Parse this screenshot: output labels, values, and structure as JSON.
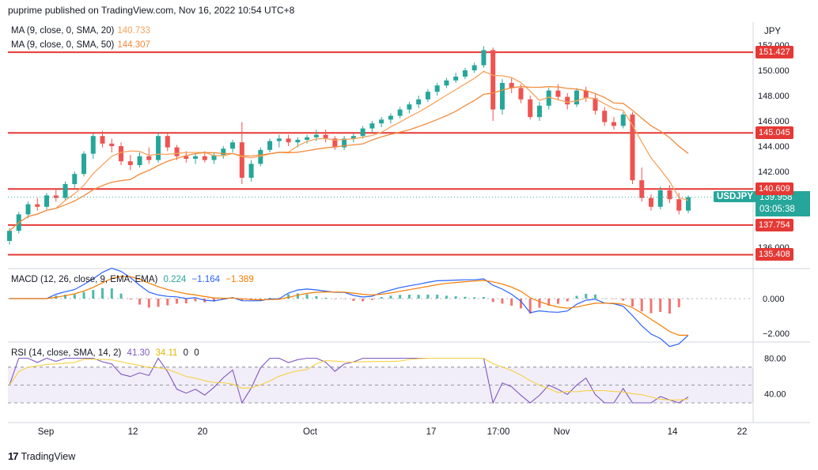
{
  "header": {
    "published": "puprime published on TradingView.com, Nov 16, 2022 10:54 UTC+8"
  },
  "footer": {
    "logo": "17",
    "brand": "TradingView"
  },
  "currency": "JPY",
  "symbol": {
    "name": "USDJPY",
    "price": "139.958",
    "countdown": "03:05:38",
    "color": "#26a69a"
  },
  "ma_legend": [
    {
      "label": "MA (9, close, 0, SMA, 20)",
      "value": "140.733",
      "color": "#f7a35c"
    },
    {
      "label": "MA (9, close, 0, SMA, 50)",
      "value": "144.307",
      "color": "#f28b3c"
    }
  ],
  "levels": [
    {
      "value": 151.427,
      "label": "151.427"
    },
    {
      "value": 145.045,
      "label": "145.045"
    },
    {
      "value": 140.609,
      "label": "140.609"
    },
    {
      "value": 137.754,
      "label": "137.754"
    },
    {
      "value": 135.408,
      "label": "135.408"
    }
  ],
  "level_color": "#e53935",
  "price_axis": {
    "ticks": [
      {
        "value": 152.0,
        "label": "152.000"
      },
      {
        "value": 150.0,
        "label": "150.000"
      },
      {
        "value": 148.0,
        "label": "148.000"
      },
      {
        "value": 146.0,
        "label": "146.000"
      },
      {
        "value": 144.0,
        "label": "144.000"
      },
      {
        "value": 142.0,
        "label": "142.000"
      },
      {
        "value": 136.0,
        "label": "136.000"
      }
    ]
  },
  "macd": {
    "label": "MACD (12, 26, close, 9, EMA, EMA)",
    "v1": "0.224",
    "v2": "−1.164",
    "v3": "−1.389",
    "c1": "#26a69a",
    "c2": "#2962ff",
    "c3": "#f57c00",
    "ticks": [
      {
        "value": 0,
        "label": "0.000"
      },
      {
        "value": -2,
        "label": "−2.000"
      }
    ]
  },
  "rsi": {
    "label": "RSI (14, close, SMA, 14, 2)",
    "v1": "41.30",
    "v2": "34.11",
    "v3": "0",
    "v4": "0",
    "c1": "#7e57c2",
    "c2": "#f5d142",
    "ticks": [
      {
        "value": 80,
        "label": "80.00"
      },
      {
        "value": 40,
        "label": "40.00"
      }
    ]
  },
  "time_axis": [
    "Sep",
    "12",
    "20",
    "Oct",
    "17",
    "17:00",
    "Nov",
    "14",
    "22"
  ],
  "chart_data": {
    "type": "candlestick",
    "candles": [
      [
        136.5,
        137.5,
        136.2,
        137.3
      ],
      [
        137.3,
        138.8,
        137.1,
        138.6
      ],
      [
        138.6,
        139.6,
        138.3,
        139.4
      ],
      [
        139.4,
        139.9,
        138.9,
        139.2
      ],
      [
        139.2,
        140.3,
        139.0,
        140.1
      ],
      [
        140.1,
        140.6,
        139.6,
        139.9
      ],
      [
        139.9,
        141.2,
        139.7,
        141.0
      ],
      [
        141.0,
        142.0,
        140.7,
        141.8
      ],
      [
        141.8,
        143.6,
        141.6,
        143.4
      ],
      [
        143.4,
        145.0,
        143.0,
        144.8
      ],
      [
        144.8,
        145.2,
        143.9,
        144.2
      ],
      [
        144.2,
        144.6,
        143.5,
        144.0
      ],
      [
        144.0,
        144.3,
        142.5,
        142.8
      ],
      [
        142.8,
        143.3,
        142.1,
        142.5
      ],
      [
        142.5,
        143.5,
        142.3,
        143.2
      ],
      [
        143.2,
        143.9,
        142.6,
        142.9
      ],
      [
        142.9,
        145.1,
        142.7,
        144.8
      ],
      [
        144.8,
        145.0,
        143.6,
        143.9
      ],
      [
        143.9,
        144.1,
        142.9,
        143.2
      ],
      [
        143.2,
        143.6,
        142.7,
        143.0
      ],
      [
        143.0,
        143.4,
        142.6,
        143.2
      ],
      [
        143.2,
        143.6,
        142.7,
        142.9
      ],
      [
        142.9,
        143.5,
        142.6,
        143.3
      ],
      [
        143.3,
        144.0,
        143.0,
        143.8
      ],
      [
        143.8,
        144.5,
        143.5,
        144.3
      ],
      [
        144.3,
        145.9,
        141.0,
        141.5
      ],
      [
        141.5,
        142.9,
        141.2,
        142.6
      ],
      [
        142.6,
        143.9,
        142.4,
        143.7
      ],
      [
        143.7,
        144.6,
        143.5,
        144.4
      ],
      [
        144.4,
        144.9,
        143.9,
        144.6
      ],
      [
        144.6,
        144.9,
        144.0,
        144.3
      ],
      [
        144.3,
        144.7,
        143.9,
        144.5
      ],
      [
        144.5,
        144.9,
        144.2,
        144.7
      ],
      [
        144.7,
        145.3,
        144.4,
        144.9
      ],
      [
        144.9,
        145.3,
        144.3,
        144.6
      ],
      [
        144.6,
        144.8,
        143.7,
        143.9
      ],
      [
        143.9,
        144.8,
        143.7,
        144.6
      ],
      [
        144.6,
        145.0,
        144.3,
        144.8
      ],
      [
        144.8,
        145.6,
        144.6,
        145.4
      ],
      [
        145.4,
        146.0,
        145.1,
        145.8
      ],
      [
        145.8,
        146.3,
        145.5,
        146.1
      ],
      [
        146.1,
        146.6,
        145.8,
        146.4
      ],
      [
        146.4,
        147.1,
        146.2,
        146.9
      ],
      [
        146.9,
        147.5,
        146.6,
        147.3
      ],
      [
        147.3,
        148.0,
        147.0,
        147.7
      ],
      [
        147.7,
        148.5,
        147.5,
        148.3
      ],
      [
        148.3,
        149.0,
        148.0,
        148.8
      ],
      [
        148.8,
        149.4,
        148.6,
        149.2
      ],
      [
        149.2,
        149.8,
        149.0,
        149.5
      ],
      [
        149.5,
        150.2,
        149.3,
        150.0
      ],
      [
        150.0,
        150.6,
        149.8,
        150.4
      ],
      [
        150.4,
        151.9,
        150.2,
        151.6
      ],
      [
        151.6,
        151.8,
        146.0,
        146.9
      ],
      [
        146.9,
        149.3,
        146.5,
        149.0
      ],
      [
        149.0,
        149.4,
        148.2,
        148.6
      ],
      [
        148.6,
        148.9,
        147.4,
        147.7
      ],
      [
        147.7,
        148.0,
        146.1,
        146.3
      ],
      [
        146.3,
        147.5,
        146.0,
        147.2
      ],
      [
        147.2,
        148.6,
        146.9,
        148.4
      ],
      [
        148.4,
        148.9,
        147.6,
        147.9
      ],
      [
        147.9,
        148.2,
        146.9,
        147.3
      ],
      [
        147.3,
        148.6,
        147.1,
        148.4
      ],
      [
        148.4,
        148.7,
        147.5,
        147.8
      ],
      [
        147.8,
        148.1,
        146.5,
        146.8
      ],
      [
        146.8,
        147.1,
        145.6,
        145.9
      ],
      [
        145.9,
        146.3,
        145.3,
        145.6
      ],
      [
        145.6,
        146.7,
        145.4,
        146.5
      ],
      [
        146.5,
        146.7,
        141.0,
        141.3
      ],
      [
        141.3,
        142.3,
        139.6,
        139.9
      ],
      [
        139.9,
        140.2,
        138.9,
        139.2
      ],
      [
        139.2,
        140.8,
        139.0,
        140.5
      ],
      [
        140.5,
        140.9,
        139.5,
        139.8
      ],
      [
        139.8,
        140.3,
        138.6,
        138.9
      ],
      [
        138.9,
        140.1,
        138.7,
        139.96
      ]
    ]
  }
}
